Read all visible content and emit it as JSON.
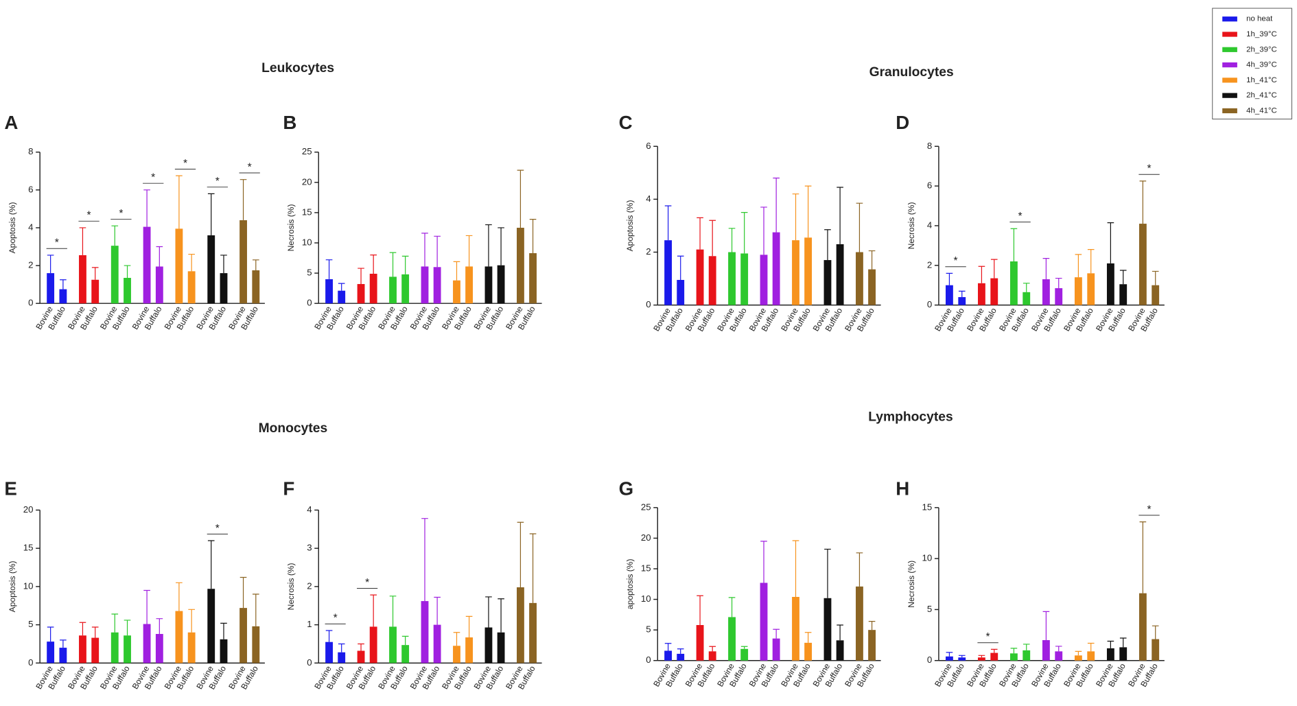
{
  "chart_data": [
    {
      "type": "bar",
      "panel": "A",
      "title": "Leukocytes",
      "ylabel": "Apoptosis (%)",
      "categories": [
        "Bovine",
        "Buffalo"
      ],
      "ylim": [
        0,
        8
      ],
      "yticks": [
        0,
        2,
        4,
        6,
        8
      ],
      "series": [
        {
          "name": "no heat",
          "color": "#1a1aeb",
          "values": [
            1.6,
            0.75
          ],
          "errors": [
            0.95,
            0.5
          ],
          "annotation": "*"
        },
        {
          "name": "1h_39°C",
          "color": "#e8141a",
          "values": [
            2.55,
            1.25
          ],
          "errors": [
            1.45,
            0.65
          ],
          "annotation": "*"
        },
        {
          "name": "2h_39°C",
          "color": "#2ec82e",
          "values": [
            3.05,
            1.35
          ],
          "errors": [
            1.05,
            0.65
          ],
          "annotation": "*"
        },
        {
          "name": "4h_39°C",
          "color": "#a020e0",
          "values": [
            4.05,
            1.95
          ],
          "errors": [
            1.95,
            1.05
          ],
          "annotation": "*"
        },
        {
          "name": "1h_41°C",
          "color": "#f7931e",
          "values": [
            3.95,
            1.7
          ],
          "errors": [
            2.8,
            0.9
          ],
          "annotation": "*"
        },
        {
          "name": "2h_41°C",
          "color": "#111111",
          "values": [
            3.6,
            1.6
          ],
          "errors": [
            2.2,
            0.95
          ],
          "annotation": "*"
        },
        {
          "name": "4h_41°C",
          "color": "#8b6423",
          "values": [
            4.4,
            1.75
          ],
          "errors": [
            2.15,
            0.55
          ],
          "annotation": "*"
        }
      ]
    },
    {
      "type": "bar",
      "panel": "B",
      "ylabel": "Necrosis (%)",
      "categories": [
        "Bovine",
        "Buffalo"
      ],
      "ylim": [
        0,
        25
      ],
      "yticks": [
        0,
        5,
        10,
        15,
        20,
        25
      ],
      "series": [
        {
          "name": "no heat",
          "color": "#1a1aeb",
          "values": [
            4.0,
            2.1
          ],
          "errors": [
            3.2,
            1.2
          ]
        },
        {
          "name": "1h_39°C",
          "color": "#e8141a",
          "values": [
            3.2,
            4.9
          ],
          "errors": [
            2.6,
            3.1
          ]
        },
        {
          "name": "2h_39°C",
          "color": "#2ec82e",
          "values": [
            4.4,
            4.8
          ],
          "errors": [
            4.0,
            3.0
          ]
        },
        {
          "name": "4h_39°C",
          "color": "#a020e0",
          "values": [
            6.1,
            6.0
          ],
          "errors": [
            5.5,
            5.1
          ]
        },
        {
          "name": "1h_41°C",
          "color": "#f7931e",
          "values": [
            3.8,
            6.1
          ],
          "errors": [
            3.1,
            5.1
          ]
        },
        {
          "name": "2h_41°C",
          "color": "#111111",
          "values": [
            6.1,
            6.3
          ],
          "errors": [
            6.9,
            6.2
          ]
        },
        {
          "name": "4h_41°C",
          "color": "#8b6423",
          "values": [
            12.5,
            8.3
          ],
          "errors": [
            9.5,
            5.6
          ]
        }
      ]
    },
    {
      "type": "bar",
      "panel": "C",
      "title": "Granulocytes",
      "ylabel": "Apoptosis (%)",
      "categories": [
        "Bovine",
        "Buffalo"
      ],
      "ylim": [
        0,
        6
      ],
      "yticks": [
        0,
        2,
        4,
        6
      ],
      "series": [
        {
          "name": "no heat",
          "color": "#1a1aeb",
          "values": [
            2.45,
            0.95
          ],
          "errors": [
            1.3,
            0.9
          ]
        },
        {
          "name": "1h_39°C",
          "color": "#e8141a",
          "values": [
            2.1,
            1.85
          ],
          "errors": [
            1.2,
            1.35
          ]
        },
        {
          "name": "2h_39°C",
          "color": "#2ec82e",
          "values": [
            2.0,
            1.95
          ],
          "errors": [
            0.9,
            1.55
          ]
        },
        {
          "name": "4h_39°C",
          "color": "#a020e0",
          "values": [
            1.9,
            2.75
          ],
          "errors": [
            1.8,
            2.05
          ]
        },
        {
          "name": "1h_41°C",
          "color": "#f7931e",
          "values": [
            2.45,
            2.55
          ],
          "errors": [
            1.75,
            1.95
          ]
        },
        {
          "name": "2h_41°C",
          "color": "#111111",
          "values": [
            1.7,
            2.3
          ],
          "errors": [
            1.15,
            2.15
          ]
        },
        {
          "name": "4h_41°C",
          "color": "#8b6423",
          "values": [
            2.0,
            1.35
          ],
          "errors": [
            1.85,
            0.7
          ]
        }
      ]
    },
    {
      "type": "bar",
      "panel": "D",
      "ylabel": "Necrosis (%)",
      "categories": [
        "Bovine",
        "Buffalo"
      ],
      "ylim": [
        0,
        8
      ],
      "yticks": [
        0,
        2,
        4,
        6,
        8
      ],
      "series": [
        {
          "name": "no heat",
          "color": "#1a1aeb",
          "values": [
            1.0,
            0.4
          ],
          "errors": [
            0.6,
            0.3
          ],
          "annotation": "*"
        },
        {
          "name": "1h_39°C",
          "color": "#e8141a",
          "values": [
            1.1,
            1.35
          ],
          "errors": [
            0.85,
            0.95
          ]
        },
        {
          "name": "2h_39°C",
          "color": "#2ec82e",
          "values": [
            2.2,
            0.65
          ],
          "errors": [
            1.65,
            0.45
          ],
          "annotation": "*"
        },
        {
          "name": "4h_39°C",
          "color": "#a020e0",
          "values": [
            1.3,
            0.85
          ],
          "errors": [
            1.05,
            0.5
          ]
        },
        {
          "name": "1h_41°C",
          "color": "#f7931e",
          "values": [
            1.4,
            1.6
          ],
          "errors": [
            1.15,
            1.2
          ]
        },
        {
          "name": "2h_41°C",
          "color": "#111111",
          "values": [
            2.1,
            1.05
          ],
          "errors": [
            2.05,
            0.7
          ]
        },
        {
          "name": "4h_41°C",
          "color": "#8b6423",
          "values": [
            4.1,
            1.0
          ],
          "errors": [
            2.15,
            0.7
          ],
          "annotation": "*"
        }
      ]
    },
    {
      "type": "bar",
      "panel": "E",
      "title": "Monocytes",
      "ylabel": "Apoptosis (%)",
      "categories": [
        "Bovine",
        "Buffalo"
      ],
      "ylim": [
        0,
        20
      ],
      "yticks": [
        0,
        5,
        10,
        15,
        20
      ],
      "series": [
        {
          "name": "no heat",
          "color": "#1a1aeb",
          "values": [
            2.8,
            2.0
          ],
          "errors": [
            1.9,
            1.0
          ]
        },
        {
          "name": "1h_39°C",
          "color": "#e8141a",
          "values": [
            3.6,
            3.3
          ],
          "errors": [
            1.7,
            1.4
          ]
        },
        {
          "name": "2h_39°C",
          "color": "#2ec82e",
          "values": [
            4.0,
            3.6
          ],
          "errors": [
            2.4,
            2.0
          ]
        },
        {
          "name": "4h_39°C",
          "color": "#a020e0",
          "values": [
            5.1,
            3.8
          ],
          "errors": [
            4.4,
            2.0
          ]
        },
        {
          "name": "1h_41°C",
          "color": "#f7931e",
          "values": [
            6.8,
            4.0
          ],
          "errors": [
            3.7,
            3.0
          ]
        },
        {
          "name": "2h_41°C",
          "color": "#111111",
          "values": [
            9.7,
            3.1
          ],
          "errors": [
            6.3,
            2.1
          ],
          "annotation": "*"
        },
        {
          "name": "4h_41°C",
          "color": "#8b6423",
          "values": [
            7.2,
            4.8
          ],
          "errors": [
            4.0,
            4.2
          ]
        }
      ]
    },
    {
      "type": "bar",
      "panel": "F",
      "ylabel": "Necrosis (%)",
      "categories": [
        "Bovine",
        "Buffalo"
      ],
      "ylim": [
        0,
        4
      ],
      "yticks": [
        0,
        1,
        2,
        3,
        4
      ],
      "series": [
        {
          "name": "no heat",
          "color": "#1a1aeb",
          "values": [
            0.55,
            0.28
          ],
          "errors": [
            0.3,
            0.22
          ],
          "annotation": "*"
        },
        {
          "name": "1h_39°C",
          "color": "#e8141a",
          "values": [
            0.32,
            0.95
          ],
          "errors": [
            0.18,
            0.83
          ],
          "annotation": "*"
        },
        {
          "name": "2h_39°C",
          "color": "#2ec82e",
          "values": [
            0.95,
            0.47
          ],
          "errors": [
            0.8,
            0.23
          ]
        },
        {
          "name": "4h_39°C",
          "color": "#a020e0",
          "values": [
            1.62,
            1.0
          ],
          "errors": [
            2.16,
            0.72
          ]
        },
        {
          "name": "1h_41°C",
          "color": "#f7931e",
          "values": [
            0.45,
            0.67
          ],
          "errors": [
            0.35,
            0.55
          ]
        },
        {
          "name": "2h_41°C",
          "color": "#111111",
          "values": [
            0.93,
            0.8
          ],
          "errors": [
            0.8,
            0.88
          ]
        },
        {
          "name": "4h_41°C",
          "color": "#8b6423",
          "values": [
            1.98,
            1.57
          ],
          "errors": [
            1.7,
            1.81
          ]
        }
      ]
    },
    {
      "type": "bar",
      "panel": "G",
      "title": "Lymphocytes",
      "ylabel": "apoptosis (%)",
      "categories": [
        "Bovine",
        "Buffalo"
      ],
      "ylim": [
        0,
        25
      ],
      "yticks": [
        0,
        5,
        10,
        15,
        20,
        25
      ],
      "series": [
        {
          "name": "no heat",
          "color": "#1a1aeb",
          "values": [
            1.6,
            1.1
          ],
          "errors": [
            1.2,
            0.8
          ]
        },
        {
          "name": "1h_39°C",
          "color": "#e8141a",
          "values": [
            5.8,
            1.5
          ],
          "errors": [
            4.8,
            0.8
          ]
        },
        {
          "name": "2h_39°C",
          "color": "#2ec82e",
          "values": [
            7.1,
            1.9
          ],
          "errors": [
            3.2,
            0.4
          ]
        },
        {
          "name": "4h_39°C",
          "color": "#a020e0",
          "values": [
            12.7,
            3.6
          ],
          "errors": [
            6.8,
            1.5
          ]
        },
        {
          "name": "1h_41°C",
          "color": "#f7931e",
          "values": [
            10.4,
            2.9
          ],
          "errors": [
            9.2,
            1.7
          ]
        },
        {
          "name": "2h_41°C",
          "color": "#111111",
          "values": [
            10.2,
            3.3
          ],
          "errors": [
            8.0,
            2.5
          ]
        },
        {
          "name": "4h_41°C",
          "color": "#8b6423",
          "values": [
            12.1,
            5.0
          ],
          "errors": [
            5.5,
            1.4
          ]
        }
      ]
    },
    {
      "type": "bar",
      "panel": "H",
      "ylabel": "Necrosis (%)",
      "categories": [
        "Bovine",
        "Buffalo"
      ],
      "ylim": [
        0,
        15
      ],
      "yticks": [
        0,
        5,
        10,
        15
      ],
      "series": [
        {
          "name": "no heat",
          "color": "#1a1aeb",
          "values": [
            0.4,
            0.3
          ],
          "errors": [
            0.4,
            0.2
          ]
        },
        {
          "name": "1h_39°C",
          "color": "#e8141a",
          "values": [
            0.3,
            0.75
          ],
          "errors": [
            0.2,
            0.35
          ],
          "annotation": "*"
        },
        {
          "name": "2h_39°C",
          "color": "#2ec82e",
          "values": [
            0.7,
            1.0
          ],
          "errors": [
            0.5,
            0.6
          ]
        },
        {
          "name": "4h_39°C",
          "color": "#a020e0",
          "values": [
            2.0,
            0.9
          ],
          "errors": [
            2.8,
            0.5
          ]
        },
        {
          "name": "1h_41°C",
          "color": "#f7931e",
          "values": [
            0.5,
            0.9
          ],
          "errors": [
            0.4,
            0.8
          ]
        },
        {
          "name": "2h_41°C",
          "color": "#111111",
          "values": [
            1.2,
            1.3
          ],
          "errors": [
            0.7,
            0.9
          ]
        },
        {
          "name": "4h_41°C",
          "color": "#8b6423",
          "values": [
            6.6,
            2.1
          ],
          "errors": [
            7.0,
            1.3
          ],
          "annotation": "*"
        }
      ]
    }
  ]
}
